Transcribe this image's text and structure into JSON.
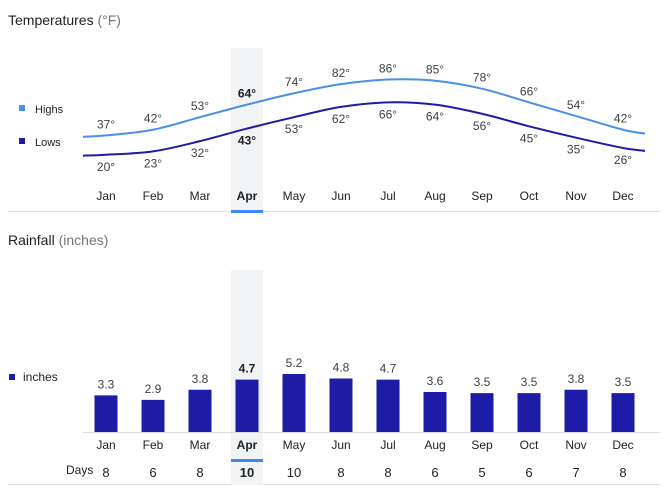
{
  "temperatures": {
    "title": "Temperatures",
    "unit": "(°F)",
    "legend": {
      "highs": "Highs",
      "lows": "Lows"
    },
    "highlight_month": "Apr"
  },
  "rainfall": {
    "title": "Rainfall",
    "unit": "(inches)",
    "legend": {
      "inches": "inches"
    },
    "days_label": "Days",
    "highlight_month": "Apr"
  },
  "colors": {
    "highs": "#4a8fe8",
    "lows": "#1c1ca6",
    "bars": "#1c1ca6",
    "highlight_band": "#f1f3f4",
    "highlight_underline": "#4285f4",
    "text": "#202124",
    "muted": "#5f6368"
  },
  "chart_data": [
    {
      "type": "line",
      "title": "Temperatures",
      "categories": [
        "Jan",
        "Feb",
        "Mar",
        "Apr",
        "May",
        "Jun",
        "Jul",
        "Aug",
        "Sep",
        "Oct",
        "Nov",
        "Dec"
      ],
      "series": [
        {
          "name": "Highs",
          "values": [
            37,
            42,
            53,
            64,
            74,
            82,
            86,
            85,
            78,
            66,
            54,
            42
          ],
          "labels": [
            "37°",
            "42°",
            "53°",
            "64°",
            "74°",
            "82°",
            "86°",
            "85°",
            "78°",
            "66°",
            "54°",
            "42°"
          ]
        },
        {
          "name": "Lows",
          "values": [
            20,
            23,
            32,
            43,
            53,
            62,
            66,
            64,
            56,
            45,
            35,
            26
          ],
          "labels": [
            "20°",
            "23°",
            "32°",
            "43°",
            "53°",
            "62°",
            "66°",
            "64°",
            "56°",
            "45°",
            "35°",
            "26°"
          ]
        }
      ],
      "legend": "left",
      "grid": false
    },
    {
      "type": "bar",
      "title": "Rainfall",
      "categories": [
        "Jan",
        "Feb",
        "Mar",
        "Apr",
        "May",
        "Jun",
        "Jul",
        "Aug",
        "Sep",
        "Oct",
        "Nov",
        "Dec"
      ],
      "series": [
        {
          "name": "inches",
          "values": [
            3.3,
            2.9,
            3.8,
            4.7,
            5.2,
            4.8,
            4.7,
            3.6,
            3.5,
            3.5,
            3.8,
            3.5
          ],
          "labels": [
            "3.3",
            "2.9",
            "3.8",
            "4.7",
            "5.2",
            "4.8",
            "4.7",
            "3.6",
            "3.5",
            "3.5",
            "3.8",
            "3.5"
          ]
        }
      ],
      "days": [
        8,
        6,
        8,
        10,
        10,
        8,
        8,
        6,
        5,
        6,
        7,
        8
      ],
      "legend": "left",
      "grid": false
    }
  ]
}
